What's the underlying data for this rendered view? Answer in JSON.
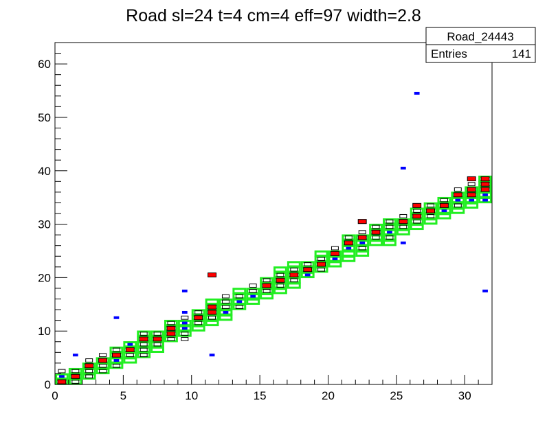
{
  "chart_data": {
    "type": "heatmap",
    "title": "Road sl=24 t=4 cm=4 eff=97 width=2.8",
    "xlim": [
      0,
      32
    ],
    "ylim": [
      0,
      64
    ],
    "x_ticks": [
      "0",
      "5",
      "10",
      "15",
      "20",
      "25",
      "30"
    ],
    "y_ticks": [
      "0",
      "10",
      "20",
      "30",
      "40",
      "50",
      "60"
    ],
    "grid": false,
    "legend": "top-right",
    "stats_box": {
      "name": "Road_24443",
      "entries_label": "Entries",
      "entries_value": "141"
    },
    "series": [
      {
        "role": "road-cells",
        "color": "#22ee22",
        "cells": [
          [
            0,
            0
          ],
          [
            0,
            1
          ],
          [
            1,
            0
          ],
          [
            1,
            1
          ],
          [
            1,
            2
          ],
          [
            2,
            1
          ],
          [
            2,
            2
          ],
          [
            2,
            3
          ],
          [
            3,
            2
          ],
          [
            3,
            3
          ],
          [
            3,
            4
          ],
          [
            4,
            3
          ],
          [
            4,
            4
          ],
          [
            4,
            5
          ],
          [
            4,
            6
          ],
          [
            5,
            4
          ],
          [
            5,
            5
          ],
          [
            5,
            6
          ],
          [
            5,
            7
          ],
          [
            6,
            5
          ],
          [
            6,
            6
          ],
          [
            6,
            7
          ],
          [
            6,
            8
          ],
          [
            6,
            9
          ],
          [
            7,
            6
          ],
          [
            7,
            7
          ],
          [
            7,
            8
          ],
          [
            7,
            9
          ],
          [
            8,
            8
          ],
          [
            8,
            9
          ],
          [
            8,
            10
          ],
          [
            8,
            11
          ],
          [
            9,
            9
          ],
          [
            9,
            10
          ],
          [
            9,
            11
          ],
          [
            10,
            10
          ],
          [
            10,
            11
          ],
          [
            10,
            12
          ],
          [
            10,
            13
          ],
          [
            11,
            11
          ],
          [
            11,
            12
          ],
          [
            11,
            13
          ],
          [
            11,
            14
          ],
          [
            11,
            15
          ],
          [
            12,
            12
          ],
          [
            12,
            13
          ],
          [
            12,
            14
          ],
          [
            12,
            15
          ],
          [
            13,
            14
          ],
          [
            13,
            15
          ],
          [
            13,
            16
          ],
          [
            13,
            17
          ],
          [
            14,
            15
          ],
          [
            14,
            16
          ],
          [
            14,
            17
          ],
          [
            15,
            16
          ],
          [
            15,
            17
          ],
          [
            15,
            18
          ],
          [
            15,
            19
          ],
          [
            16,
            17
          ],
          [
            16,
            18
          ],
          [
            16,
            19
          ],
          [
            16,
            20
          ],
          [
            16,
            21
          ],
          [
            17,
            18
          ],
          [
            17,
            19
          ],
          [
            17,
            20
          ],
          [
            17,
            21
          ],
          [
            17,
            22
          ],
          [
            18,
            20
          ],
          [
            18,
            21
          ],
          [
            18,
            22
          ],
          [
            19,
            21
          ],
          [
            19,
            22
          ],
          [
            19,
            23
          ],
          [
            19,
            24
          ],
          [
            20,
            22
          ],
          [
            20,
            23
          ],
          [
            20,
            24
          ],
          [
            21,
            23
          ],
          [
            21,
            24
          ],
          [
            21,
            25
          ],
          [
            21,
            26
          ],
          [
            21,
            27
          ],
          [
            22,
            24
          ],
          [
            22,
            25
          ],
          [
            22,
            26
          ],
          [
            22,
            27
          ],
          [
            23,
            26
          ],
          [
            23,
            27
          ],
          [
            23,
            28
          ],
          [
            23,
            29
          ],
          [
            24,
            26
          ],
          [
            24,
            27
          ],
          [
            24,
            28
          ],
          [
            24,
            29
          ],
          [
            24,
            30
          ],
          [
            25,
            28
          ],
          [
            25,
            29
          ],
          [
            25,
            30
          ],
          [
            26,
            29
          ],
          [
            26,
            30
          ],
          [
            26,
            31
          ],
          [
            26,
            32
          ],
          [
            27,
            30
          ],
          [
            27,
            31
          ],
          [
            27,
            32
          ],
          [
            27,
            33
          ],
          [
            28,
            31
          ],
          [
            28,
            32
          ],
          [
            28,
            33
          ],
          [
            28,
            34
          ],
          [
            29,
            32
          ],
          [
            29,
            33
          ],
          [
            29,
            34
          ],
          [
            29,
            35
          ],
          [
            30,
            33
          ],
          [
            30,
            34
          ],
          [
            30,
            35
          ],
          [
            30,
            36
          ],
          [
            31,
            34
          ],
          [
            31,
            35
          ],
          [
            31,
            36
          ],
          [
            31,
            37
          ],
          [
            31,
            38
          ]
        ]
      },
      {
        "role": "hits",
        "colors": {
          "1": "#0000ff",
          "2": "#ff0000",
          "3": "#000000"
        },
        "cells": [
          [
            0,
            0,
            2
          ],
          [
            0,
            1,
            1
          ],
          [
            0,
            2,
            3
          ],
          [
            1,
            0,
            3
          ],
          [
            1,
            1,
            2
          ],
          [
            1,
            2,
            3
          ],
          [
            1,
            5,
            1
          ],
          [
            2,
            1,
            3
          ],
          [
            2,
            2,
            3
          ],
          [
            2,
            3,
            2
          ],
          [
            2,
            4,
            3
          ],
          [
            3,
            2,
            3
          ],
          [
            3,
            3,
            3
          ],
          [
            3,
            4,
            2
          ],
          [
            3,
            5,
            3
          ],
          [
            4,
            3,
            3
          ],
          [
            4,
            4,
            1
          ],
          [
            4,
            5,
            2
          ],
          [
            4,
            6,
            3
          ],
          [
            4,
            12,
            1
          ],
          [
            5,
            5,
            3
          ],
          [
            5,
            6,
            2
          ],
          [
            5,
            7,
            1
          ],
          [
            6,
            5,
            3
          ],
          [
            6,
            6,
            3
          ],
          [
            6,
            7,
            3
          ],
          [
            6,
            8,
            2
          ],
          [
            6,
            9,
            3
          ],
          [
            7,
            7,
            3
          ],
          [
            7,
            8,
            2
          ],
          [
            7,
            9,
            3
          ],
          [
            8,
            8,
            3
          ],
          [
            8,
            9,
            2
          ],
          [
            8,
            10,
            2
          ],
          [
            8,
            11,
            3
          ],
          [
            9,
            8,
            3
          ],
          [
            9,
            9,
            3
          ],
          [
            9,
            10,
            1
          ],
          [
            9,
            11,
            1
          ],
          [
            9,
            12,
            3
          ],
          [
            9,
            13,
            1
          ],
          [
            9,
            17,
            1
          ],
          [
            10,
            11,
            3
          ],
          [
            10,
            12,
            2
          ],
          [
            10,
            13,
            3
          ],
          [
            11,
            12,
            3
          ],
          [
            11,
            13,
            2
          ],
          [
            11,
            14,
            2
          ],
          [
            11,
            20,
            2
          ],
          [
            11,
            5,
            1
          ],
          [
            12,
            13,
            1
          ],
          [
            12,
            14,
            3
          ],
          [
            12,
            15,
            3
          ],
          [
            12,
            16,
            3
          ],
          [
            13,
            14,
            3
          ],
          [
            13,
            15,
            1
          ],
          [
            13,
            16,
            3
          ],
          [
            14,
            16,
            1
          ],
          [
            14,
            17,
            3
          ],
          [
            14,
            18,
            3
          ],
          [
            15,
            17,
            3
          ],
          [
            15,
            18,
            2
          ],
          [
            15,
            19,
            3
          ],
          [
            16,
            18,
            3
          ],
          [
            16,
            19,
            2
          ],
          [
            16,
            20,
            3
          ],
          [
            17,
            19,
            3
          ],
          [
            17,
            20,
            2
          ],
          [
            17,
            21,
            3
          ],
          [
            18,
            20,
            1
          ],
          [
            18,
            21,
            2
          ],
          [
            18,
            22,
            3
          ],
          [
            19,
            21,
            3
          ],
          [
            19,
            22,
            2
          ],
          [
            19,
            23,
            3
          ],
          [
            20,
            23,
            1
          ],
          [
            20,
            24,
            2
          ],
          [
            20,
            25,
            3
          ],
          [
            21,
            25,
            1
          ],
          [
            21,
            26,
            2
          ],
          [
            21,
            27,
            3
          ],
          [
            22,
            25,
            3
          ],
          [
            22,
            26,
            1
          ],
          [
            22,
            27,
            2
          ],
          [
            22,
            28,
            3
          ],
          [
            22,
            30,
            2
          ],
          [
            23,
            27,
            3
          ],
          [
            23,
            28,
            2
          ],
          [
            23,
            29,
            3
          ],
          [
            24,
            27,
            3
          ],
          [
            24,
            28,
            1
          ],
          [
            24,
            29,
            3
          ],
          [
            24,
            30,
            3
          ],
          [
            25,
            29,
            3
          ],
          [
            25,
            30,
            2
          ],
          [
            25,
            31,
            3
          ],
          [
            25,
            26,
            1
          ],
          [
            25,
            40,
            1
          ],
          [
            26,
            30,
            3
          ],
          [
            26,
            31,
            2
          ],
          [
            26,
            32,
            3
          ],
          [
            26,
            33,
            2
          ],
          [
            26,
            54,
            1
          ],
          [
            27,
            31,
            3
          ],
          [
            27,
            32,
            2
          ],
          [
            27,
            33,
            3
          ],
          [
            28,
            32,
            1
          ],
          [
            28,
            33,
            2
          ],
          [
            28,
            34,
            3
          ],
          [
            29,
            33,
            3
          ],
          [
            29,
            34,
            1
          ],
          [
            29,
            35,
            2
          ],
          [
            29,
            36,
            3
          ],
          [
            30,
            34,
            1
          ],
          [
            30,
            35,
            2
          ],
          [
            30,
            36,
            2
          ],
          [
            30,
            37,
            3
          ],
          [
            30,
            38,
            2
          ],
          [
            31,
            34,
            1
          ],
          [
            31,
            35,
            1
          ],
          [
            31,
            36,
            2
          ],
          [
            31,
            37,
            2
          ],
          [
            31,
            38,
            2
          ],
          [
            31,
            17,
            1
          ]
        ]
      }
    ]
  }
}
